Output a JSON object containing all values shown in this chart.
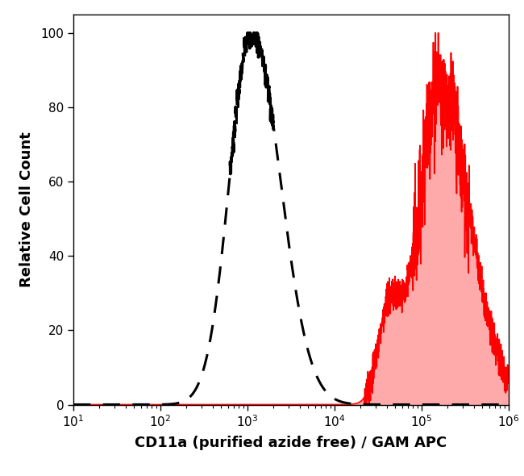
{
  "title": "",
  "xlabel": "CD11a (purified azide free) / GAM APC",
  "ylabel": "Relative Cell Count",
  "xlim": [
    10,
    1000000
  ],
  "ylim": [
    0,
    105
  ],
  "yticks": [
    0,
    20,
    40,
    60,
    80,
    100
  ],
  "background_color": "#ffffff",
  "dashed_peak_log": 3.05,
  "dashed_sigma_log": 0.3,
  "dashed_color": "#000000",
  "red_peak_log": 5.22,
  "red_sigma_log": 0.35,
  "red_color": "#ff0000",
  "red_fill_color": "#ffaaaa",
  "noise_seed": 7
}
